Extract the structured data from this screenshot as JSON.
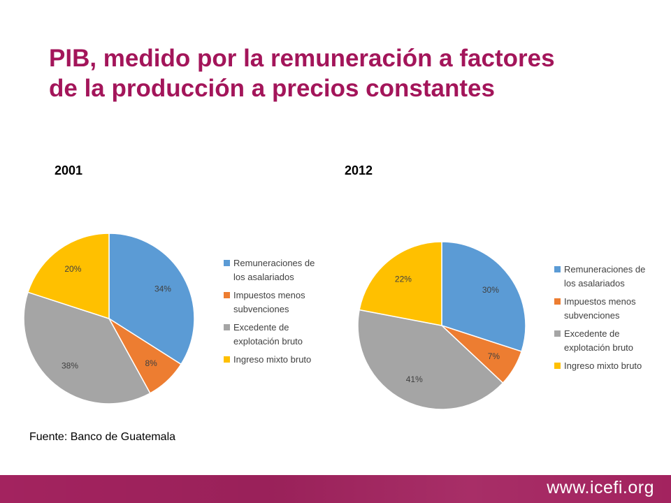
{
  "title": {
    "line1": "PIB, medido por la remuneración a factores",
    "line2": "de la producción a precios constantes"
  },
  "chart_data": [
    {
      "type": "pie",
      "title": "2001",
      "categories": [
        "Remuneraciones de los asalariados",
        "Impuestos menos subvenciones",
        "Excedente de explotación bruto",
        "Ingreso mixto bruto"
      ],
      "values": [
        34,
        8,
        38,
        20
      ],
      "labels": [
        "34%",
        "8%",
        "38%",
        "20%"
      ],
      "colors": [
        "#5b9bd5",
        "#ed7d31",
        "#a5a5a5",
        "#ffc000"
      ],
      "legend": {
        "position": "right",
        "items": [
          {
            "line1": "Remuneraciones de",
            "line2": "los asalariados"
          },
          {
            "line1": "Impuestos menos",
            "line2": "subvenciones"
          },
          {
            "line1": "Excedente de",
            "line2": "explotación bruto"
          },
          {
            "line1": "Ingreso mixto bruto",
            "line2": ""
          }
        ]
      }
    },
    {
      "type": "pie",
      "title": "2012",
      "categories": [
        "Remuneraciones de los asalariados",
        "Impuestos menos subvenciones",
        "Excedente de explotación bruto",
        "Ingreso mixto bruto"
      ],
      "values": [
        30,
        7,
        41,
        22
      ],
      "labels": [
        "30%",
        "7%",
        "41%",
        "22%"
      ],
      "colors": [
        "#5b9bd5",
        "#ed7d31",
        "#a5a5a5",
        "#ffc000"
      ],
      "legend": {
        "position": "right",
        "items": [
          {
            "line1": "Remuneraciones de",
            "line2": "los asalariados"
          },
          {
            "line1": "Impuestos menos",
            "line2": "subvenciones"
          },
          {
            "line1": "Excedente de",
            "line2": "explotación bruto"
          },
          {
            "line1": "Ingreso mixto bruto",
            "line2": ""
          }
        ]
      }
    }
  ],
  "source": "Fuente: Banco de Guatemala",
  "footer": {
    "url": "www.icefi.org",
    "color": "#a3235f"
  },
  "colors": {
    "title": "#a3155a"
  }
}
